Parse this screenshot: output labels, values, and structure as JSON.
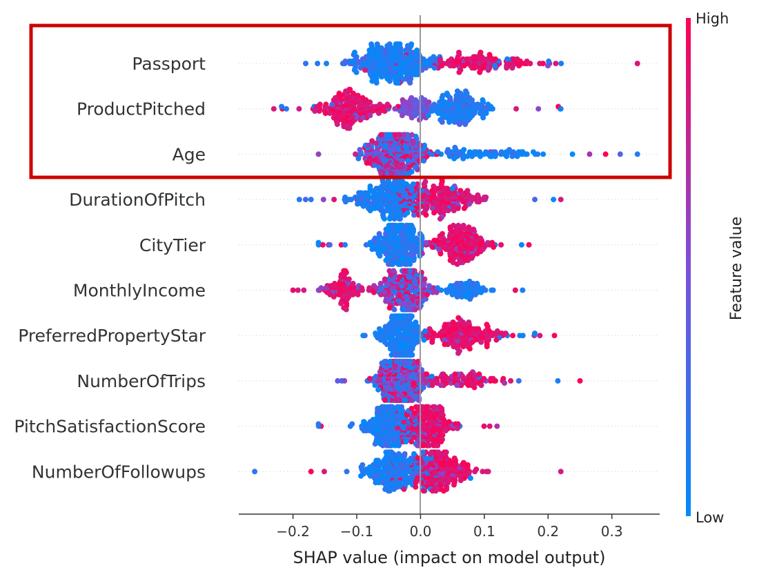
{
  "chart_data": {
    "type": "scatter",
    "subtype": "beeswarm",
    "xlabel": "SHAP value (impact on model output)",
    "xlim": [
      -0.285,
      0.375
    ],
    "xticks": [
      "−0.2",
      "−0.1",
      "0.0",
      "0.1",
      "0.2",
      "0.3"
    ],
    "xtick_values": [
      -0.2,
      -0.1,
      0.0,
      0.1,
      0.2,
      0.3
    ],
    "colorbar": {
      "title": "Feature value",
      "high_label": "High",
      "low_label": "Low",
      "low_color": "#008bfb",
      "high_color": "#ff0052"
    },
    "highlight": {
      "color": "#cc0000",
      "features": [
        "Passport",
        "ProductPitched",
        "Age"
      ]
    },
    "features": [
      {
        "name": "Passport",
        "min": -0.18,
        "max": 0.34,
        "clusters": [
          {
            "center": -0.045,
            "spread": 0.06,
            "value": "low",
            "weight": 0.72
          },
          {
            "center": 0.09,
            "spread": 0.09,
            "value": "high",
            "weight": 0.28
          }
        ]
      },
      {
        "name": "ProductPitched",
        "min": -0.23,
        "max": 0.22,
        "clusters": [
          {
            "center": -0.11,
            "spread": 0.055,
            "value": "high",
            "weight": 0.48
          },
          {
            "center": -0.01,
            "spread": 0.03,
            "value": "mid",
            "weight": 0.14
          },
          {
            "center": 0.06,
            "spread": 0.05,
            "value": "low",
            "weight": 0.38
          }
        ]
      },
      {
        "name": "Age",
        "min": -0.16,
        "max": 0.34,
        "clusters": [
          {
            "center": -0.04,
            "spread": 0.05,
            "value": "mixed",
            "weight": 0.85
          },
          {
            "center": 0.1,
            "spread": 0.1,
            "value": "low",
            "weight": 0.15
          }
        ]
      },
      {
        "name": "DurationOfPitch",
        "min": -0.19,
        "max": 0.22,
        "clusters": [
          {
            "center": -0.05,
            "spread": 0.05,
            "value": "low",
            "weight": 0.55
          },
          {
            "center": 0.03,
            "spread": 0.06,
            "value": "high",
            "weight": 0.45
          }
        ]
      },
      {
        "name": "CityTier",
        "min": -0.16,
        "max": 0.17,
        "clusters": [
          {
            "center": -0.035,
            "spread": 0.04,
            "value": "low",
            "weight": 0.55
          },
          {
            "center": 0.06,
            "spread": 0.045,
            "value": "high",
            "weight": 0.45
          }
        ]
      },
      {
        "name": "MonthlyIncome",
        "min": -0.2,
        "max": 0.16,
        "clusters": [
          {
            "center": -0.12,
            "spread": 0.04,
            "value": "high",
            "weight": 0.2
          },
          {
            "center": -0.02,
            "spread": 0.04,
            "value": "mixed",
            "weight": 0.65
          },
          {
            "center": 0.07,
            "spread": 0.04,
            "value": "low",
            "weight": 0.15
          }
        ]
      },
      {
        "name": "PreferredPropertyStar",
        "min": -0.09,
        "max": 0.21,
        "clusters": [
          {
            "center": -0.03,
            "spread": 0.03,
            "value": "low",
            "weight": 0.55
          },
          {
            "center": 0.07,
            "spread": 0.06,
            "value": "high",
            "weight": 0.45
          }
        ]
      },
      {
        "name": "NumberOfTrips",
        "min": -0.13,
        "max": 0.25,
        "clusters": [
          {
            "center": -0.03,
            "spread": 0.04,
            "value": "mixed",
            "weight": 0.8
          },
          {
            "center": 0.07,
            "spread": 0.06,
            "value": "high",
            "weight": 0.2
          }
        ]
      },
      {
        "name": "PitchSatisfactionScore",
        "min": -0.16,
        "max": 0.12,
        "clusters": [
          {
            "center": -0.05,
            "spread": 0.04,
            "value": "low",
            "weight": 0.5
          },
          {
            "center": 0.01,
            "spread": 0.04,
            "value": "high",
            "weight": 0.5
          }
        ]
      },
      {
        "name": "NumberOfFollowups",
        "min": -0.26,
        "max": 0.22,
        "clusters": [
          {
            "center": -0.04,
            "spread": 0.05,
            "value": "low",
            "weight": 0.55
          },
          {
            "center": 0.03,
            "spread": 0.05,
            "value": "high",
            "weight": 0.45
          }
        ]
      }
    ]
  }
}
